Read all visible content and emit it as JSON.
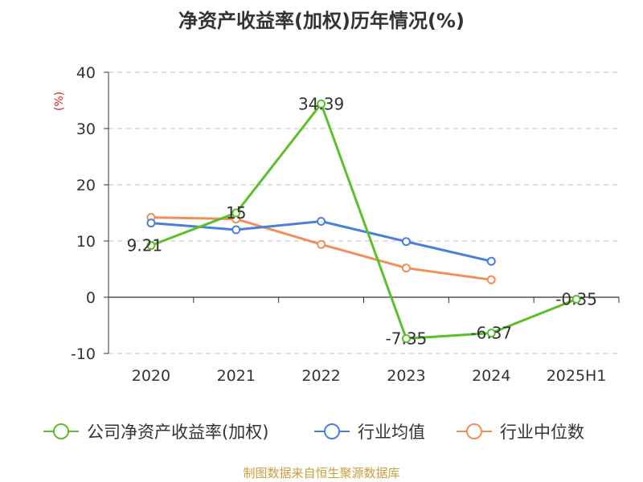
{
  "chart_data": {
    "type": "line",
    "title": "净资产收益率(加权)历年情况(%)",
    "ylabel": "(%)",
    "xlabel": "",
    "categories": [
      "2020",
      "2021",
      "2022",
      "2023",
      "2024",
      "2025H1"
    ],
    "ylim": [
      -10,
      40
    ],
    "yticks": [
      -10,
      0,
      10,
      20,
      30,
      40
    ],
    "grid": true,
    "legend_position": "bottom",
    "series": [
      {
        "name": "公司净资产收益率(加权)",
        "color": "#5cc02a",
        "values": [
          9.21,
          15,
          34.39,
          -7.35,
          -6.37,
          -0.35
        ],
        "labels": [
          "9.21",
          "15",
          "34.39",
          "-7.35",
          "-6.37",
          "-0.35"
        ]
      },
      {
        "name": "行业均值",
        "color": "#4a7fdc",
        "values": [
          13.2,
          12.0,
          13.5,
          9.9,
          6.4,
          null
        ]
      },
      {
        "name": "行业中位数",
        "color": "#f28e58",
        "values": [
          14.2,
          13.9,
          9.4,
          5.2,
          3.1,
          null
        ]
      }
    ]
  },
  "source": "制图数据来自恒生聚源数据库"
}
